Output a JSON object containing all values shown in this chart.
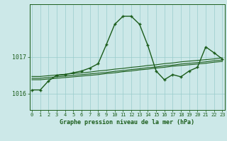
{
  "title": "Graphe pression niveau de la mer (hPa)",
  "bg_color": "#cce8e8",
  "plot_bg_color": "#cce8e8",
  "line_color": "#1a5c1a",
  "grid_color": "#99cccc",
  "x_ticks": [
    0,
    1,
    2,
    3,
    4,
    5,
    6,
    7,
    8,
    9,
    10,
    11,
    12,
    13,
    14,
    15,
    16,
    17,
    18,
    19,
    20,
    21,
    22,
    23
  ],
  "ylim": [
    1015.55,
    1018.45
  ],
  "yticks": [
    1016,
    1017
  ],
  "main_series": [
    1016.1,
    1016.1,
    1016.35,
    1016.5,
    1016.52,
    1016.57,
    1016.62,
    1016.7,
    1016.82,
    1017.35,
    1017.9,
    1018.12,
    1018.12,
    1017.9,
    1017.32,
    1016.62,
    1016.38,
    1016.52,
    1016.46,
    1016.62,
    1016.72,
    1017.28,
    1017.12,
    1016.95
  ],
  "smooth1": [
    1016.42,
    1016.42,
    1016.44,
    1016.46,
    1016.48,
    1016.5,
    1016.52,
    1016.54,
    1016.56,
    1016.58,
    1016.61,
    1016.63,
    1016.66,
    1016.68,
    1016.71,
    1016.73,
    1016.76,
    1016.78,
    1016.81,
    1016.83,
    1016.85,
    1016.87,
    1016.9,
    1016.92
  ],
  "smooth2": [
    1016.47,
    1016.47,
    1016.49,
    1016.51,
    1016.53,
    1016.55,
    1016.57,
    1016.59,
    1016.62,
    1016.64,
    1016.67,
    1016.69,
    1016.72,
    1016.74,
    1016.77,
    1016.79,
    1016.82,
    1016.84,
    1016.87,
    1016.89,
    1016.91,
    1016.93,
    1016.95,
    1016.98
  ],
  "smooth3": [
    1016.38,
    1016.38,
    1016.4,
    1016.42,
    1016.44,
    1016.46,
    1016.48,
    1016.5,
    1016.52,
    1016.55,
    1016.57,
    1016.6,
    1016.62,
    1016.65,
    1016.67,
    1016.7,
    1016.72,
    1016.75,
    1016.77,
    1016.79,
    1016.81,
    1016.83,
    1016.86,
    1016.88
  ]
}
